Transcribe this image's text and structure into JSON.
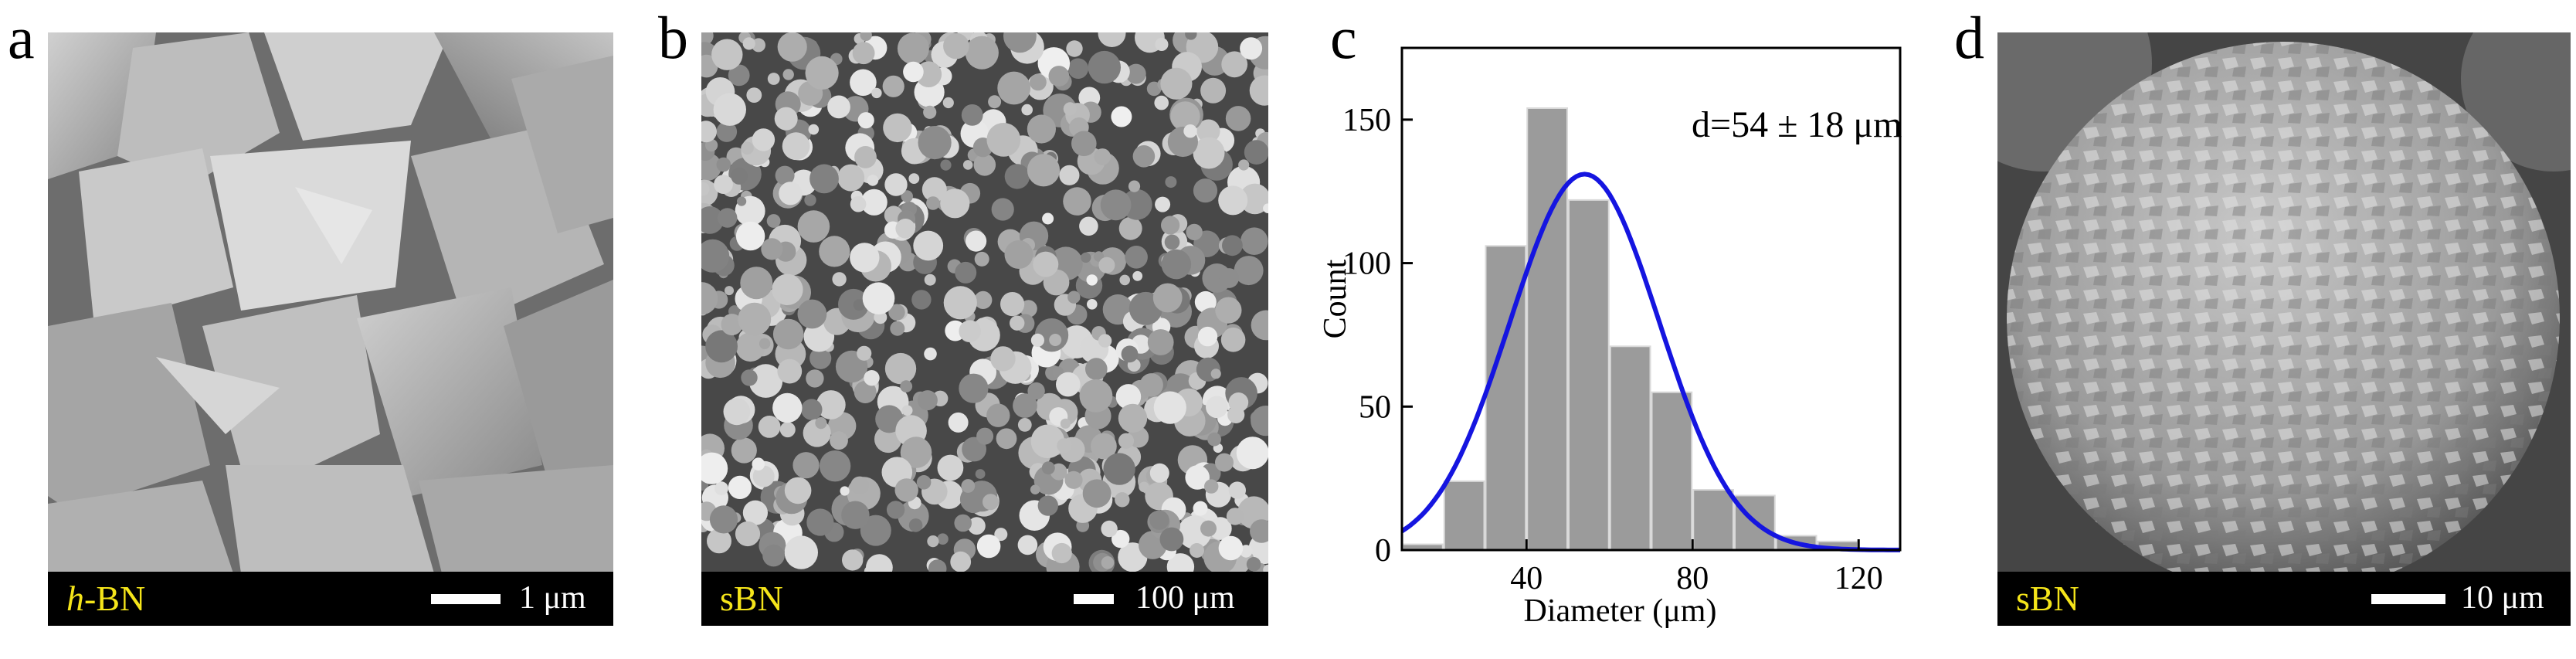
{
  "panels": {
    "a": {
      "letter": "a",
      "label_italic": "h",
      "label_rest": "-BN",
      "scale": "1 μm"
    },
    "b": {
      "letter": "b",
      "label": "sBN",
      "scale": "100 μm"
    },
    "c": {
      "letter": "c"
    },
    "d": {
      "letter": "d",
      "label": "sBN",
      "scale": "10 μm"
    }
  },
  "chart_data": {
    "type": "bar",
    "title": "",
    "annotation": "d=54 ± 18 μm",
    "xlabel": "Diameter (μm)",
    "ylabel": "Count",
    "xlim": [
      10,
      130
    ],
    "ylim": [
      0,
      175
    ],
    "xticks": [
      40,
      80,
      120
    ],
    "yticks": [
      0,
      50,
      100,
      150
    ],
    "bin_width": 10,
    "bins": [
      {
        "center": 15,
        "count": 2
      },
      {
        "center": 25,
        "count": 24
      },
      {
        "center": 35,
        "count": 106
      },
      {
        "center": 45,
        "count": 154
      },
      {
        "center": 55,
        "count": 122
      },
      {
        "center": 65,
        "count": 71
      },
      {
        "center": 75,
        "count": 55
      },
      {
        "center": 85,
        "count": 21
      },
      {
        "center": 95,
        "count": 19
      },
      {
        "center": 105,
        "count": 5
      },
      {
        "center": 115,
        "count": 3
      }
    ],
    "fit": {
      "type": "gaussian",
      "mean": 54,
      "sigma": 18,
      "peak": 131,
      "color": "#1515e0"
    }
  }
}
